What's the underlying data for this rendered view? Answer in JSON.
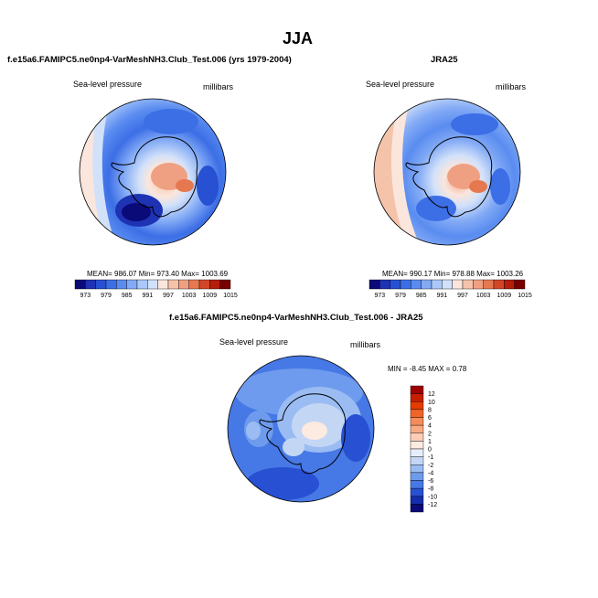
{
  "page_title": "JJA",
  "chart_data": [
    {
      "type": "heatmap",
      "projection": "south-polar-stereographic",
      "subtitle": "f.e15a6.FAMIPC5.ne0np4-VarMeshNH3.Club_Test.006 (yrs 1979-2004)",
      "field_label": "Sea-level pressure",
      "units_label": "millibars",
      "stats_text": "MEAN= 986.07  Min= 973.40  Max= 1003.69",
      "mean": 986.07,
      "min": 973.4,
      "max": 1003.69,
      "colorbar": {
        "orientation": "horizontal",
        "tick_labels": [
          "973",
          "979",
          "985",
          "991",
          "997",
          "1003",
          "1009",
          "1015"
        ],
        "colors": [
          "#0a0a78",
          "#1e32b4",
          "#2850d2",
          "#3c6ee6",
          "#5a8cf0",
          "#82aaf5",
          "#aac8fa",
          "#d2e1fa",
          "#fae6dc",
          "#f5c3aa",
          "#f0a082",
          "#e67850",
          "#d24628",
          "#b41e0a",
          "#780000"
        ]
      }
    },
    {
      "type": "heatmap",
      "projection": "south-polar-stereographic",
      "subtitle": "JRA25",
      "field_label": "Sea-level pressure",
      "units_label": "millibars",
      "stats_text": "MEAN= 990.17  Min= 978.88  Max= 1003.26",
      "mean": 990.17,
      "min": 978.88,
      "max": 1003.26,
      "colorbar": {
        "orientation": "horizontal",
        "tick_labels": [
          "973",
          "979",
          "985",
          "991",
          "997",
          "1003",
          "1009",
          "1015"
        ],
        "colors": [
          "#0a0a78",
          "#1e32b4",
          "#2850d2",
          "#3c6ee6",
          "#5a8cf0",
          "#82aaf5",
          "#aac8fa",
          "#d2e1fa",
          "#fae6dc",
          "#f5c3aa",
          "#f0a082",
          "#e67850",
          "#d24628",
          "#b41e0a",
          "#780000"
        ]
      }
    },
    {
      "type": "heatmap",
      "projection": "south-polar-stereographic",
      "subtitle": "f.e15a6.FAMIPC5.ne0np4-VarMeshNH3.Club_Test.006 - JRA25",
      "field_label": "Sea-level pressure",
      "units_label": "millibars",
      "stats_text": "MIN = -8.45 MAX = 0.78",
      "min": -8.45,
      "max": 0.78,
      "colorbar": {
        "orientation": "vertical",
        "tick_labels": [
          "12",
          "10",
          "8",
          "6",
          "4",
          "2",
          "1",
          "0",
          "-1",
          "-2",
          "-4",
          "-6",
          "-8",
          "-10",
          "-12"
        ],
        "colors": [
          "#a00000",
          "#c81e00",
          "#e63c00",
          "#f06428",
          "#f58c5a",
          "#faaa82",
          "#fccdb4",
          "#fdeae0",
          "#e6eefa",
          "#c3d7f5",
          "#9bbcf2",
          "#6e9bee",
          "#4678e6",
          "#2850d2",
          "#142daa",
          "#0a0a78"
        ]
      }
    }
  ]
}
